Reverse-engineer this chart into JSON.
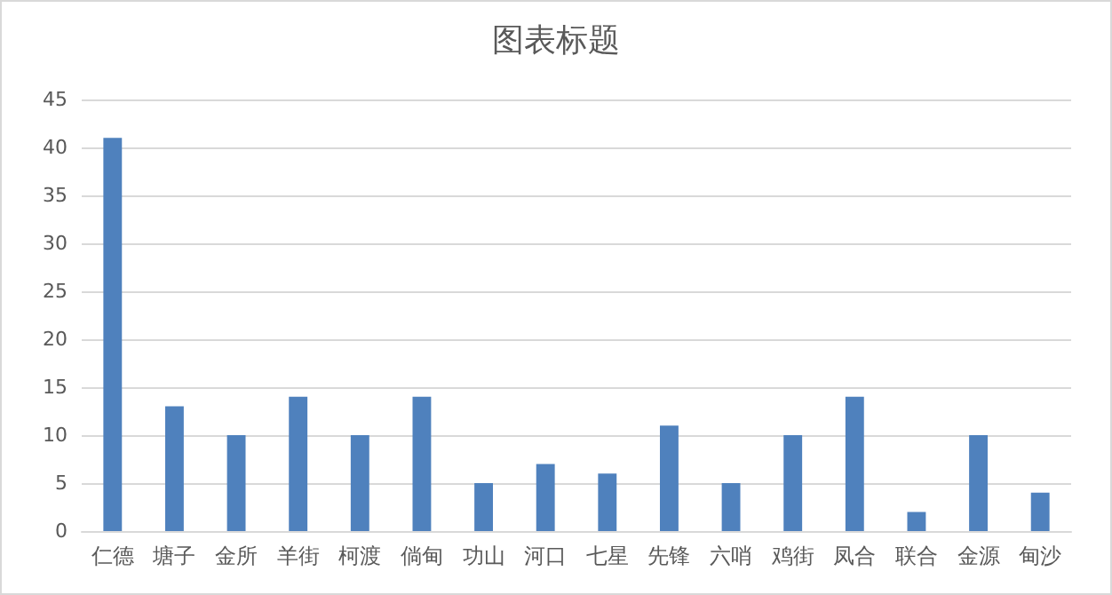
{
  "chart_data": {
    "type": "bar",
    "title": "图表标题",
    "categories": [
      "仁德",
      "塘子",
      "金所",
      "羊街",
      "柯渡",
      "倘甸",
      "功山",
      "河口",
      "七星",
      "先锋",
      "六哨",
      "鸡街",
      "凤合",
      "联合",
      "金源",
      "甸沙"
    ],
    "values": [
      41,
      13,
      10,
      14,
      10,
      14,
      5,
      7,
      6,
      11,
      5,
      10,
      14,
      2,
      10,
      4
    ],
    "color": "#4f81bd",
    "ylim": [
      0,
      45
    ],
    "yticks": [
      0,
      5,
      10,
      15,
      20,
      25,
      30,
      35,
      40,
      45
    ],
    "grid": "y"
  }
}
